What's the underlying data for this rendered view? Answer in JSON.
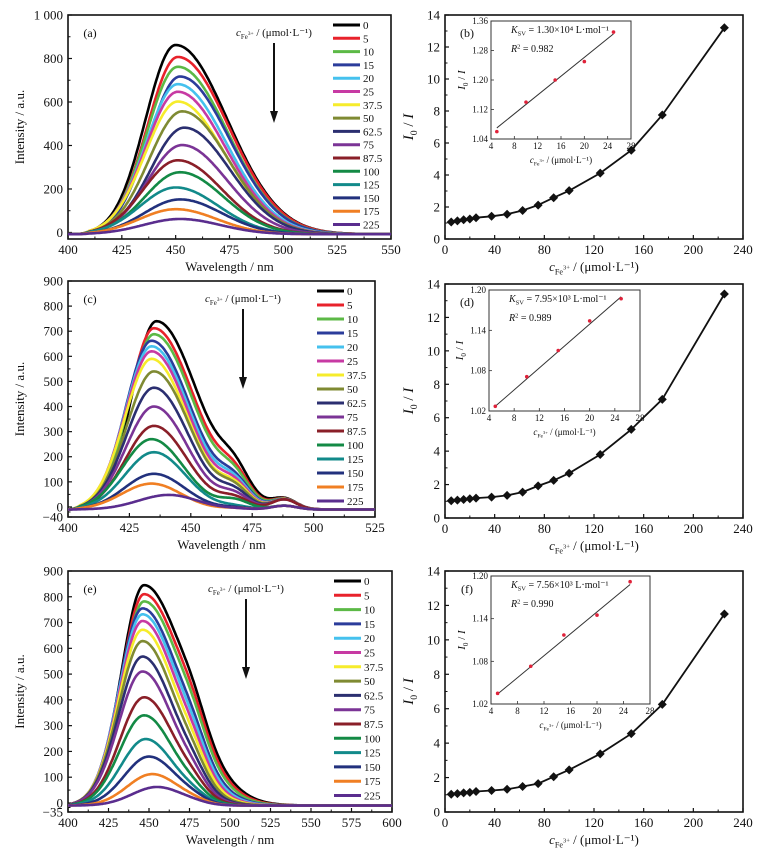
{
  "figure": {
    "concentration_label": "c",
    "concentration_sub": "Fe3+",
    "concentration_unit": " / (μmol·L⁻¹)",
    "legend_title": "c_Fe3+ / (μmol·L⁻¹)"
  },
  "chart_data": [
    {
      "id": "a",
      "type": "line",
      "panel_label": "(a)",
      "title": "",
      "xlabel": "Wavelength / nm",
      "ylabel": "Intensity / a.u.",
      "xlim": [
        400,
        550
      ],
      "ylim": [
        -30,
        1000
      ],
      "xticks": [
        400,
        425,
        450,
        475,
        500,
        525,
        550
      ],
      "yticks": [
        0,
        200,
        400,
        600,
        800,
        1000
      ],
      "ytick_labels": [
        "0",
        "200",
        "400",
        "600",
        "800",
        "1 000"
      ],
      "legend_placement": "top-right",
      "annotation": "c_Fe3+ / (μmol·L⁻¹) with downward arrow (quenching)",
      "series": [
        {
          "name": "0",
          "color": "#000000",
          "peak_x": 450,
          "peak_y": 870
        },
        {
          "name": "5",
          "color": "#e8222b",
          "peak_x": 451,
          "peak_y": 815
        },
        {
          "name": "10",
          "color": "#5cb946",
          "peak_x": 451,
          "peak_y": 770
        },
        {
          "name": "15",
          "color": "#2b3c9b",
          "peak_x": 452,
          "peak_y": 725
        },
        {
          "name": "20",
          "color": "#45c1ee",
          "peak_x": 451,
          "peak_y": 690
        },
        {
          "name": "25",
          "color": "#c73aa3",
          "peak_x": 451,
          "peak_y": 655
        },
        {
          "name": "37.5",
          "color": "#f6ec2b",
          "peak_x": 451,
          "peak_y": 610
        },
        {
          "name": "50",
          "color": "#7f8a32",
          "peak_x": 453,
          "peak_y": 565
        },
        {
          "name": "62.5",
          "color": "#2b2f70",
          "peak_x": 454,
          "peak_y": 490
        },
        {
          "name": "75",
          "color": "#7b3496",
          "peak_x": 453,
          "peak_y": 410
        },
        {
          "name": "87.5",
          "color": "#8a1f28",
          "peak_x": 451,
          "peak_y": 340
        },
        {
          "name": "100",
          "color": "#138a45",
          "peak_x": 452,
          "peak_y": 285
        },
        {
          "name": "125",
          "color": "#128a8a",
          "peak_x": 450,
          "peak_y": 215
        },
        {
          "name": "150",
          "color": "#22317d",
          "peak_x": 452,
          "peak_y": 160
        },
        {
          "name": "175",
          "color": "#f07f23",
          "peak_x": 450,
          "peak_y": 115
        },
        {
          "name": "225",
          "color": "#5a2d8e",
          "peak_x": 452,
          "peak_y": 70
        }
      ]
    },
    {
      "id": "b",
      "type": "line",
      "panel_label": "(b)",
      "xlabel": "c_Fe3+ / (μmol·L⁻¹)",
      "ylabel": "I0 / I",
      "xlim": [
        0,
        240
      ],
      "ylim": [
        0,
        14
      ],
      "xticks": [
        0,
        40,
        80,
        120,
        160,
        200,
        240
      ],
      "yticks": [
        0,
        2,
        4,
        6,
        8,
        10,
        12,
        14
      ],
      "x": [
        5,
        10,
        15,
        20,
        25,
        37.5,
        50,
        62.5,
        75,
        87.5,
        100,
        125,
        150,
        175,
        225
      ],
      "y": [
        1.06,
        1.13,
        1.2,
        1.25,
        1.33,
        1.42,
        1.55,
        1.78,
        2.12,
        2.58,
        3.02,
        4.12,
        5.55,
        7.75,
        13.2
      ],
      "inset": {
        "type": "scatter",
        "xlabel": "c_Fe3+ / (μmol·L⁻¹)",
        "ylabel": "I0 / I",
        "xlim": [
          4,
          28
        ],
        "ylim": [
          1.04,
          1.36
        ],
        "xticks": [
          4,
          8,
          12,
          16,
          20,
          24,
          28
        ],
        "yticks": [
          1.04,
          1.12,
          1.2,
          1.28,
          1.36
        ],
        "x": [
          5,
          10,
          15,
          20,
          25
        ],
        "y": [
          1.06,
          1.14,
          1.2,
          1.25,
          1.33
        ],
        "fit_line": {
          "x": [
            5,
            25
          ],
          "y": [
            1.07,
            1.325
          ]
        },
        "ksv_text": "= 1.30×10⁴ L·mol⁻¹",
        "r2_text": "= 0.982"
      }
    },
    {
      "id": "c",
      "type": "line",
      "panel_label": "(c)",
      "xlabel": "Wavelength / nm",
      "ylabel": "Intensity / a.u.",
      "xlim": [
        400,
        525
      ],
      "ylim": [
        -40,
        900
      ],
      "xticks": [
        400,
        425,
        450,
        475,
        500,
        525
      ],
      "yticks": [
        -40,
        0,
        100,
        200,
        300,
        400,
        500,
        600,
        700,
        800,
        900
      ],
      "ytick_labels": [
        "−40",
        "0",
        "100",
        "200",
        "300",
        "400",
        "500",
        "600",
        "700",
        "800",
        "900"
      ],
      "legend_placement": "top-right",
      "series": [
        {
          "name": "0",
          "color": "#000000",
          "peak_x": 436,
          "peak_y": 750
        },
        {
          "name": "5",
          "color": "#e8222b",
          "peak_x": 435,
          "peak_y": 722
        },
        {
          "name": "10",
          "color": "#5cb946",
          "peak_x": 435,
          "peak_y": 698
        },
        {
          "name": "15",
          "color": "#2b3c9b",
          "peak_x": 434,
          "peak_y": 672
        },
        {
          "name": "20",
          "color": "#45c1ee",
          "peak_x": 434,
          "peak_y": 650
        },
        {
          "name": "25",
          "color": "#c73aa3",
          "peak_x": 434,
          "peak_y": 630
        },
        {
          "name": "37.5",
          "color": "#f6ec2b",
          "peak_x": 434,
          "peak_y": 600
        },
        {
          "name": "50",
          "color": "#7f8a32",
          "peak_x": 435,
          "peak_y": 550
        },
        {
          "name": "62.5",
          "color": "#2b2f70",
          "peak_x": 435,
          "peak_y": 485
        },
        {
          "name": "75",
          "color": "#7b3496",
          "peak_x": 435,
          "peak_y": 410
        },
        {
          "name": "87.5",
          "color": "#8a1f28",
          "peak_x": 435,
          "peak_y": 333
        },
        {
          "name": "100",
          "color": "#138a45",
          "peak_x": 434,
          "peak_y": 280
        },
        {
          "name": "125",
          "color": "#128a8a",
          "peak_x": 435,
          "peak_y": 228
        },
        {
          "name": "150",
          "color": "#22317d",
          "peak_x": 435,
          "peak_y": 142
        },
        {
          "name": "175",
          "color": "#f07f23",
          "peak_x": 434,
          "peak_y": 103
        },
        {
          "name": "225",
          "color": "#5a2d8e",
          "peak_x": 441,
          "peak_y": 58
        }
      ]
    },
    {
      "id": "d",
      "type": "line",
      "panel_label": "(d)",
      "xlabel": "c_Fe3+ / (μmol·L⁻¹)",
      "ylabel": "I0 / I",
      "xlim": [
        0,
        240
      ],
      "ylim": [
        0,
        14
      ],
      "xticks": [
        0,
        40,
        80,
        120,
        160,
        200,
        240
      ],
      "yticks": [
        0,
        2,
        4,
        6,
        8,
        10,
        12,
        14
      ],
      "x": [
        5,
        10,
        15,
        20,
        25,
        37.5,
        50,
        62.5,
        75,
        87.5,
        100,
        125,
        150,
        175,
        225
      ],
      "y": [
        1.03,
        1.07,
        1.11,
        1.15,
        1.19,
        1.25,
        1.35,
        1.55,
        1.92,
        2.25,
        2.68,
        3.8,
        5.3,
        7.1,
        13.4
      ],
      "inset": {
        "type": "scatter",
        "xlabel": "c_Fe3+ / (μmol·L⁻¹)",
        "ylabel": "I0 / I",
        "xlim": [
          4,
          28
        ],
        "ylim": [
          1.02,
          1.2
        ],
        "xticks": [
          4,
          8,
          12,
          16,
          20,
          24,
          28
        ],
        "yticks": [
          1.02,
          1.08,
          1.14,
          1.2
        ],
        "x": [
          5,
          10,
          15,
          20,
          25
        ],
        "y": [
          1.027,
          1.071,
          1.11,
          1.154,
          1.187
        ],
        "fit_line": {
          "x": [
            5,
            25
          ],
          "y": [
            1.027,
            1.19
          ]
        },
        "ksv_text": "= 7.95×10³ L·mol⁻¹",
        "r2_text": "= 0.989"
      }
    },
    {
      "id": "e",
      "type": "line",
      "panel_label": "(e)",
      "xlabel": "Wavelength / nm",
      "ylabel": "Intensity / a.u.",
      "xlim": [
        400,
        600
      ],
      "ylim": [
        -35,
        900
      ],
      "xticks": [
        400,
        425,
        450,
        475,
        500,
        525,
        550,
        575,
        600
      ],
      "yticks": [
        -35,
        0,
        100,
        200,
        300,
        400,
        500,
        600,
        700,
        800,
        900
      ],
      "ytick_labels": [
        "−35",
        "0",
        "100",
        "200",
        "300",
        "400",
        "500",
        "600",
        "700",
        "800",
        "900"
      ],
      "legend_placement": "top-right",
      "series": [
        {
          "name": "0",
          "color": "#000000",
          "peak_x": 447,
          "peak_y": 855
        },
        {
          "name": "5",
          "color": "#e8222b",
          "peak_x": 447,
          "peak_y": 820
        },
        {
          "name": "10",
          "color": "#5cb946",
          "peak_x": 447,
          "peak_y": 792
        },
        {
          "name": "15",
          "color": "#2b3c9b",
          "peak_x": 446,
          "peak_y": 765
        },
        {
          "name": "20",
          "color": "#45c1ee",
          "peak_x": 446,
          "peak_y": 742
        },
        {
          "name": "25",
          "color": "#c73aa3",
          "peak_x": 446,
          "peak_y": 716
        },
        {
          "name": "37.5",
          "color": "#f6ec2b",
          "peak_x": 446,
          "peak_y": 682
        },
        {
          "name": "50",
          "color": "#7f8a32",
          "peak_x": 446,
          "peak_y": 638
        },
        {
          "name": "62.5",
          "color": "#2b2f70",
          "peak_x": 446,
          "peak_y": 578
        },
        {
          "name": "75",
          "color": "#7b3496",
          "peak_x": 446,
          "peak_y": 520
        },
        {
          "name": "87.5",
          "color": "#8a1f28",
          "peak_x": 447,
          "peak_y": 420
        },
        {
          "name": "100",
          "color": "#138a45",
          "peak_x": 447,
          "peak_y": 350
        },
        {
          "name": "125",
          "color": "#128a8a",
          "peak_x": 448,
          "peak_y": 258
        },
        {
          "name": "150",
          "color": "#22317d",
          "peak_x": 450,
          "peak_y": 190
        },
        {
          "name": "175",
          "color": "#f07f23",
          "peak_x": 452,
          "peak_y": 122
        },
        {
          "name": "225",
          "color": "#5a2d8e",
          "peak_x": 455,
          "peak_y": 72
        }
      ]
    },
    {
      "id": "f",
      "type": "line",
      "panel_label": "(f)",
      "xlabel": "c_Fe3+ / (μmol·L⁻¹)",
      "ylabel": "I0 / I",
      "xlim": [
        0,
        240
      ],
      "ylim": [
        0,
        14
      ],
      "xticks": [
        0,
        40,
        80,
        120,
        160,
        200,
        240
      ],
      "yticks": [
        0,
        2,
        4,
        6,
        8,
        10,
        12,
        14
      ],
      "x": [
        5,
        10,
        15,
        20,
        25,
        37.5,
        50,
        62.5,
        75,
        87.5,
        100,
        125,
        150,
        175,
        225
      ],
      "y": [
        1.03,
        1.07,
        1.11,
        1.14,
        1.19,
        1.25,
        1.32,
        1.48,
        1.65,
        2.05,
        2.45,
        3.38,
        4.55,
        6.25,
        11.5
      ],
      "inset": {
        "type": "scatter",
        "xlabel": "c_Fe3+ / (μmol·L⁻¹)",
        "ylabel": "I0 / I",
        "xlim": [
          4,
          28
        ],
        "ylim": [
          1.02,
          1.2
        ],
        "xticks": [
          4,
          8,
          12,
          16,
          20,
          24,
          28
        ],
        "yticks": [
          1.02,
          1.08,
          1.14,
          1.2
        ],
        "x": [
          5,
          10,
          15,
          20,
          25
        ],
        "y": [
          1.035,
          1.073,
          1.117,
          1.145,
          1.192
        ],
        "fit_line": {
          "x": [
            5,
            25
          ],
          "y": [
            1.034,
            1.188
          ]
        },
        "ksv_text": "= 7.56×10³ L·mol⁻¹",
        "r2_text": "= 0.990"
      }
    }
  ]
}
